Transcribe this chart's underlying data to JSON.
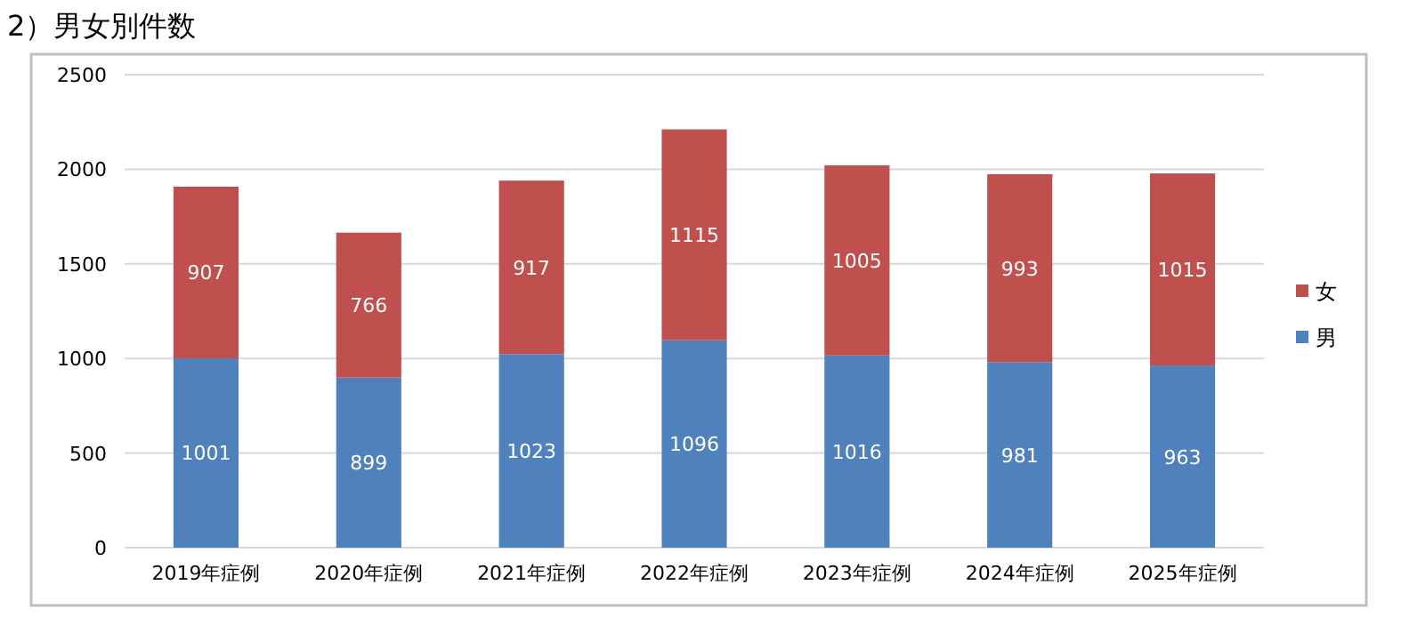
{
  "chart_data": {
    "type": "bar",
    "title": "2）男女別件数",
    "stacked": true,
    "data_labels": true,
    "grid": "y",
    "legend": "right",
    "categories": [
      "2019年症例",
      "2020年症例",
      "2021年症例",
      "2022年症例",
      "2023年症例",
      "2024年症例",
      "2025年症例"
    ],
    "ylim": [
      0,
      2500
    ],
    "yticks": [
      0,
      500,
      1000,
      1500,
      2000,
      2500
    ],
    "series": [
      {
        "name": "男",
        "color": "#4f81bd",
        "values": [
          1001,
          899,
          1023,
          1096,
          1016,
          981,
          963
        ]
      },
      {
        "name": "女",
        "color": "#c0504d",
        "values": [
          907,
          766,
          917,
          1115,
          1005,
          993,
          1015
        ]
      }
    ]
  }
}
